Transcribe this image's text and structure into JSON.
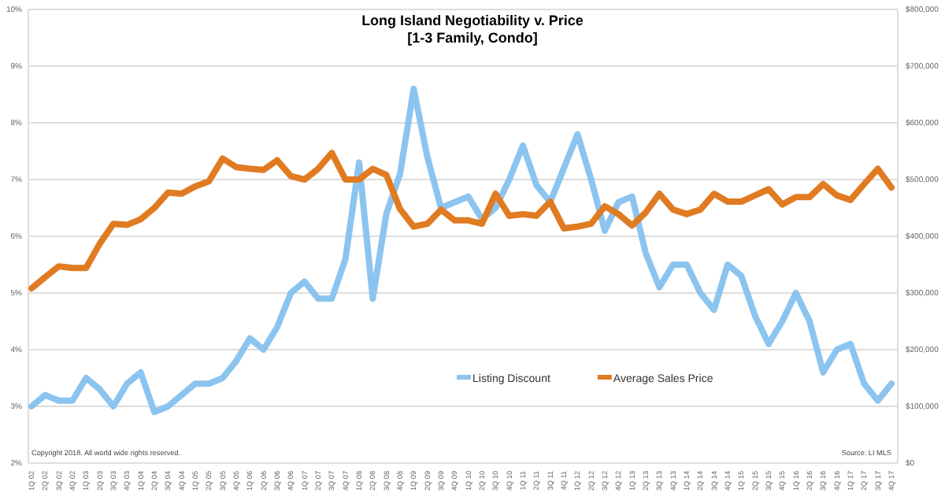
{
  "chart_data": {
    "type": "line",
    "title": "Long Island Negotiability v. Price",
    "subtitle": "[1-3 Family, Condo]",
    "categories": [
      "1Q 02",
      "2Q 02",
      "3Q 02",
      "4Q 02",
      "1Q 03",
      "2Q 03",
      "3Q 03",
      "4Q 03",
      "1Q 04",
      "2Q 04",
      "3Q 04",
      "4Q 04",
      "1Q 05",
      "2Q 05",
      "3Q 05",
      "4Q 05",
      "1Q 06",
      "2Q 06",
      "3Q 06",
      "4Q 06",
      "1Q 07",
      "2Q 07",
      "3Q 07",
      "4Q 07",
      "1Q 08",
      "2Q 08",
      "3Q 08",
      "4Q 08",
      "1Q 09",
      "2Q 09",
      "3Q 09",
      "4Q 09",
      "1Q 10",
      "2Q 10",
      "3Q 10",
      "4Q 10",
      "1Q 11",
      "2Q 11",
      "3Q 11",
      "4Q 11",
      "1Q 12",
      "2Q 12",
      "3Q 12",
      "4Q 12",
      "1Q 13",
      "2Q 13",
      "3Q 13",
      "4Q 13",
      "1Q 14",
      "2Q 14",
      "3Q 14",
      "4Q 14",
      "1Q 15",
      "2Q 15",
      "3Q 15",
      "4Q 15",
      "1Q 16",
      "2Q 16",
      "3Q 16",
      "4Q 16",
      "1Q 17",
      "2Q 17",
      "3Q 17",
      "4Q 17"
    ],
    "series": [
      {
        "name": "Listing Discount",
        "color": "#8cc4f0",
        "values": [
          3.0,
          3.2,
          3.1,
          3.1,
          3.5,
          3.3,
          3.0,
          3.4,
          3.6,
          2.9,
          3.0,
          3.2,
          3.4,
          3.4,
          3.5,
          3.8,
          4.2,
          4.0,
          4.4,
          5.0,
          5.2,
          4.9,
          4.9,
          5.6,
          7.3,
          4.9,
          6.4,
          7.1,
          8.6,
          7.4,
          6.5,
          6.6,
          6.7,
          6.3,
          6.5,
          7.0,
          7.6,
          6.9,
          6.6,
          7.2,
          7.8,
          7.0,
          6.1,
          6.6,
          6.7,
          5.7,
          5.1,
          5.5,
          5.5,
          5.0,
          4.7,
          5.5,
          5.3,
          4.6,
          4.1,
          4.5,
          5.0,
          4.5,
          3.6,
          4.0,
          4.1,
          3.4,
          3.1,
          3.4
        ]
      },
      {
        "name": "Average Sales Price",
        "color": "#e07b22",
        "axis": "y2",
        "values": [
          308000,
          328000,
          347000,
          344000,
          344000,
          387000,
          422000,
          420000,
          430000,
          450000,
          477000,
          475000,
          488000,
          497000,
          537000,
          522000,
          519000,
          517000,
          534000,
          506000,
          500000,
          519000,
          547000,
          500000,
          500000,
          519000,
          508000,
          448000,
          417000,
          422000,
          447000,
          428000,
          428000,
          422000,
          475000,
          436000,
          439000,
          436000,
          461000,
          414000,
          417000,
          422000,
          453000,
          439000,
          419000,
          442000,
          475000,
          447000,
          439000,
          447000,
          475000,
          461000,
          461000,
          472000,
          483000,
          456000,
          469000,
          469000,
          492000,
          472000,
          464000,
          492000,
          519000,
          486000
        ]
      }
    ],
    "ylim": [
      2,
      10
    ],
    "yticks": [
      {
        "value": 2,
        "label": "2%"
      },
      {
        "value": 3,
        "label": "3%"
      },
      {
        "value": 4,
        "label": "4%"
      },
      {
        "value": 5,
        "label": "5%"
      },
      {
        "value": 6,
        "label": "6%"
      },
      {
        "value": 7,
        "label": "7%"
      },
      {
        "value": 8,
        "label": "8%"
      },
      {
        "value": 9,
        "label": "9%"
      },
      {
        "value": 10,
        "label": "10%"
      }
    ],
    "y2lim": [
      0,
      800000
    ],
    "y2ticks": [
      {
        "value": 0,
        "label": "$0"
      },
      {
        "value": 100000,
        "label": "$100,000"
      },
      {
        "value": 200000,
        "label": "$200,000"
      },
      {
        "value": 300000,
        "label": "$300,000"
      },
      {
        "value": 400000,
        "label": "$400,000"
      },
      {
        "value": 500000,
        "label": "$500,000"
      },
      {
        "value": 600000,
        "label": "$600,000"
      },
      {
        "value": 700000,
        "label": "$700,000"
      },
      {
        "value": 800000,
        "label": "$800,000"
      }
    ],
    "grid": "y",
    "legend": "bottom",
    "marker": "none",
    "line_style": "solid",
    "annotations": [
      "Copyright 2018. All world wide rights reserved.",
      "Source: LI MLS"
    ]
  }
}
